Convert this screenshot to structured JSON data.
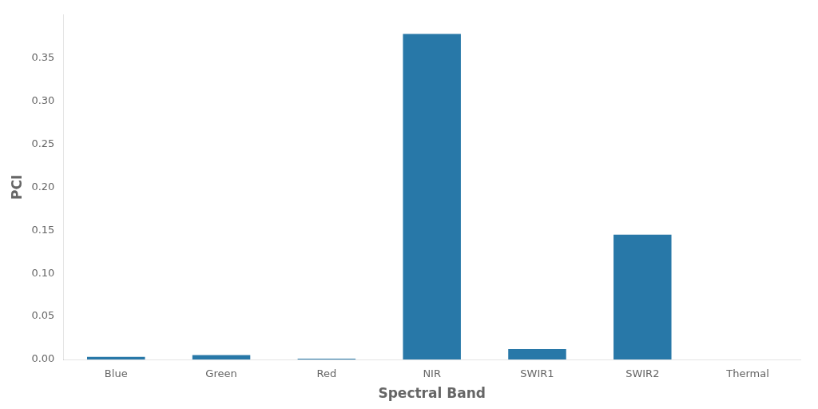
{
  "chart_data": {
    "type": "bar",
    "categories": [
      "Blue",
      "Green",
      "Red",
      "NIR",
      "SWIR1",
      "SWIR2",
      "Thermal"
    ],
    "values": [
      0.003,
      0.005,
      0.001,
      0.378,
      0.012,
      0.145,
      0.0
    ],
    "color": "#2878a8",
    "xlabel": "Spectral Band",
    "ylabel": "PCI",
    "ylim": [
      0,
      0.4
    ],
    "yticks": [
      {
        "value": 0.0,
        "label": "0.00"
      },
      0.05,
      {
        "value": 0.1,
        "label": "0.10"
      },
      0.15,
      {
        "value": 0.2,
        "label": "0.20"
      },
      0.25,
      {
        "value": 0.3,
        "label": "0.30"
      },
      0.35
    ],
    "grid": false
  }
}
